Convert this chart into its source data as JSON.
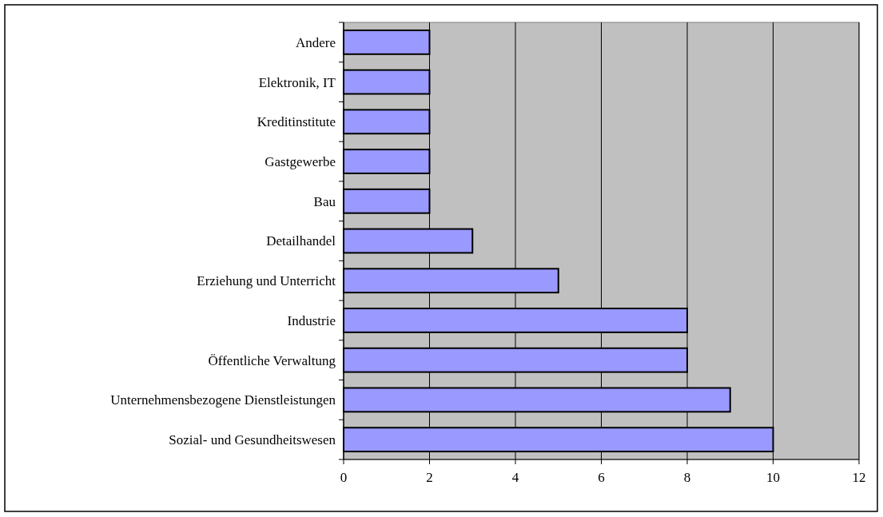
{
  "chart_data": {
    "type": "bar",
    "orientation": "horizontal",
    "categories": [
      "Andere",
      "Elektronik, IT",
      "Kreditinstitute",
      "Gastgewerbe",
      "Bau",
      "Detailhandel",
      "Erziehung und Unterricht",
      "Industrie",
      "Öffentliche Verwaltung",
      "Unternehmensbezogene Dienstleistungen",
      "Sozial- und Gesundheitswesen"
    ],
    "values": [
      2,
      2,
      2,
      2,
      2,
      3,
      5,
      8,
      8,
      9,
      10
    ],
    "color": "#9999ff",
    "xlim": [
      0,
      12
    ],
    "xticks": [
      0,
      2,
      4,
      6,
      8,
      10,
      12
    ],
    "grid": "x"
  }
}
